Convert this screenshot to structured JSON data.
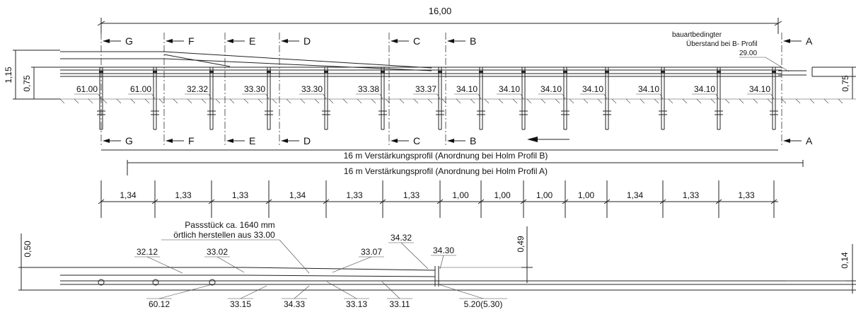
{
  "overall_length": "16,00",
  "height_labels": {
    "left_outer": "1,15",
    "left_inner": "0,75",
    "right": "0,75"
  },
  "note_lines": [
    "bauartbedingter",
    "Überstand bei B- Profil"
  ],
  "note_value": "29.00",
  "sections": [
    "G",
    "F",
    "E",
    "D",
    "C",
    "B",
    "A"
  ],
  "post_labels": [
    "61.00",
    "61.00",
    "32.32",
    "33.30",
    "33.30",
    "33.38",
    "33.37",
    "34.10",
    "34.10",
    "34.10",
    "34.10",
    "34.10",
    "34.10",
    "34.10"
  ],
  "profile_b_label": "16 m Verstärkungsprofil (Anordnung bei Holm Profil B)",
  "profile_a_label": "16 m Verstärkungsprofil (Anordnung bei Holm Profil A)",
  "spacings": [
    "1,34",
    "1,33",
    "1,33",
    "1,34",
    "1,33",
    "1,33",
    "1,00",
    "1,00",
    "1,00",
    "1,00",
    "1,34",
    "1,33",
    "1,33"
  ],
  "bottom": {
    "height_left": "0,50",
    "height_mid": "0,49",
    "height_right": "0,14",
    "note_lines": [
      "Passstück ca. 1640 mm",
      "örtlich herstellen aus 33.00"
    ],
    "top_labels": [
      "32.12",
      "33.02",
      "33.07",
      "34.32",
      "34.30"
    ],
    "bottom_labels": [
      "60.12",
      "33.15",
      "34.33",
      "33.13",
      "33.11",
      "5.20(5.30)"
    ]
  },
  "icons": [
    "direction-arrow-icon"
  ]
}
